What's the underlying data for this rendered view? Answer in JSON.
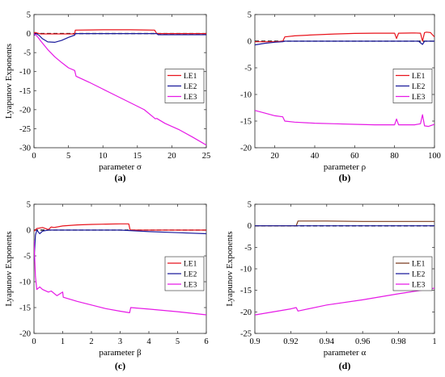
{
  "chart_data": [
    {
      "type": "line",
      "panel_label": "(a)",
      "xlabel": "parameter σ",
      "ylabel": "Lyapunov Exponents",
      "xlim": [
        0,
        25
      ],
      "ylim": [
        -30,
        5
      ],
      "xticks": [
        0,
        5,
        10,
        15,
        20,
        25
      ],
      "yticks": [
        5,
        0,
        -5,
        -10,
        -15,
        -20,
        -25,
        -30
      ],
      "xtick_labels": [
        "0",
        "5",
        "10",
        "15",
        "20",
        "25"
      ],
      "ytick_labels": [
        "5",
        "0",
        "-5",
        "-10",
        "-15",
        "-20",
        "-25",
        "-30"
      ],
      "legend_position": "right-middle",
      "zero_line": true,
      "grid": false,
      "series": [
        {
          "name": "LE1",
          "color": "#e8131c",
          "x": [
            0,
            0.2,
            0.5,
            1,
            2,
            3,
            4,
            5,
            5.9,
            6.0,
            8,
            10,
            12,
            14,
            16,
            17.5,
            17.8,
            19,
            21,
            23,
            25
          ],
          "y": [
            0.2,
            0.3,
            0.1,
            -0.1,
            -0.1,
            -0.1,
            -0.1,
            -0.1,
            -0.1,
            0.9,
            0.95,
            1.0,
            1.0,
            1.0,
            0.95,
            0.9,
            0.0,
            0.0,
            0.0,
            0.0,
            0.0
          ]
        },
        {
          "name": "LE2",
          "color": "#1a1a9c",
          "x": [
            0,
            0.3,
            0.7,
            1.2,
            2,
            3,
            4,
            5,
            5.9,
            6.0,
            10,
            15,
            17.8,
            18,
            20,
            22,
            25
          ],
          "y": [
            -0.5,
            0,
            -0.4,
            -1.3,
            -2.2,
            -2.3,
            -1.8,
            -1.0,
            -0.4,
            0,
            0,
            0,
            0,
            -0.3,
            -0.3,
            -0.3,
            -0.3
          ]
        },
        {
          "name": "LE3",
          "color": "#e619e6",
          "x": [
            0,
            0.5,
            1,
            2,
            3,
            4,
            5,
            5.9,
            6.1,
            8,
            10,
            12,
            14,
            16,
            17.6,
            17.8,
            19,
            21,
            23,
            25
          ],
          "y": [
            0,
            -0.8,
            -2,
            -4.2,
            -6.1,
            -7.6,
            -9.0,
            -9.7,
            -11.2,
            -12.8,
            -14.6,
            -16.4,
            -18.2,
            -20.0,
            -22.4,
            -22.3,
            -23.6,
            -25.2,
            -27.2,
            -29.3
          ]
        }
      ]
    },
    {
      "type": "line",
      "panel_label": "(b)",
      "xlabel": "parameter ρ",
      "ylabel": "",
      "xlim": [
        10,
        100
      ],
      "ylim": [
        -20,
        5
      ],
      "xticks": [
        20,
        40,
        60,
        80,
        100
      ],
      "yticks": [
        5,
        0,
        -5,
        -10,
        -15,
        -20
      ],
      "xtick_labels": [
        "20",
        "40",
        "60",
        "80",
        "100"
      ],
      "ytick_labels": [
        "5",
        "0",
        "-5",
        "-10",
        "-15",
        "-20"
      ],
      "legend_position": "right-middle",
      "zero_line": true,
      "grid": false,
      "series": [
        {
          "name": "LE1",
          "color": "#e8131c",
          "x": [
            10,
            15,
            20,
            24,
            25,
            30,
            40,
            50,
            60,
            70,
            80,
            81,
            82,
            90,
            93,
            94,
            95,
            96,
            98,
            100
          ],
          "y": [
            -0.1,
            -0.1,
            -0.1,
            0,
            0.8,
            1.0,
            1.2,
            1.35,
            1.45,
            1.5,
            1.5,
            0.5,
            1.5,
            1.55,
            1.5,
            0.0,
            1.6,
            1.7,
            1.6,
            0.8
          ]
        },
        {
          "name": "LE2",
          "color": "#1a1a9c",
          "x": [
            10,
            15,
            20,
            24,
            25,
            50,
            80,
            92,
            93,
            94,
            95,
            100
          ],
          "y": [
            -0.7,
            -0.4,
            -0.2,
            -0.1,
            0,
            0,
            0,
            0,
            -0.3,
            -0.6,
            0,
            0
          ]
        },
        {
          "name": "LE3",
          "color": "#e619e6",
          "x": [
            10,
            15,
            20,
            24,
            25,
            30,
            40,
            50,
            60,
            70,
            80,
            81,
            82,
            90,
            93,
            94,
            95,
            97,
            100
          ],
          "y": [
            -13.0,
            -13.5,
            -14.0,
            -14.2,
            -15.0,
            -15.2,
            -15.4,
            -15.5,
            -15.6,
            -15.7,
            -15.7,
            -14.6,
            -15.7,
            -15.7,
            -15.5,
            -13.8,
            -15.9,
            -16.0,
            -15.6
          ]
        }
      ]
    },
    {
      "type": "line",
      "panel_label": "(c)",
      "xlabel": "parameter β",
      "ylabel": "Lyapunov Exponents",
      "xlim": [
        0,
        6
      ],
      "ylim": [
        -20,
        5
      ],
      "xticks": [
        0,
        1,
        2,
        3,
        4,
        5,
        6
      ],
      "yticks": [
        5,
        0,
        -5,
        -10,
        -15,
        -20
      ],
      "xtick_labels": [
        "0",
        "1",
        "2",
        "3",
        "4",
        "5",
        "6"
      ],
      "ytick_labels": [
        "5",
        "0",
        "-5",
        "-10",
        "-15",
        "-20"
      ],
      "legend_position": "right-middle",
      "zero_line": true,
      "grid": false,
      "series": [
        {
          "name": "LE1",
          "color": "#e8131c",
          "x": [
            0,
            0.1,
            0.3,
            0.5,
            0.6,
            0.7,
            1.0,
            1.5,
            2,
            2.5,
            3,
            3.3,
            3.35,
            4,
            5,
            6
          ],
          "y": [
            -0.2,
            0.3,
            0.5,
            0.1,
            0.6,
            0.5,
            0.8,
            1.0,
            1.1,
            1.15,
            1.2,
            1.2,
            0,
            0,
            0,
            0
          ]
        },
        {
          "name": "LE2",
          "color": "#1a1a9c",
          "x": [
            0,
            0.05,
            0.1,
            0.2,
            0.3,
            0.5,
            1,
            2,
            3,
            3.35,
            4,
            5,
            6
          ],
          "y": [
            -6,
            -1,
            0,
            -0.7,
            -0.2,
            0,
            0,
            0,
            0,
            -0.1,
            -0.3,
            -0.5,
            -0.7
          ]
        },
        {
          "name": "LE3",
          "color": "#e619e6",
          "x": [
            0,
            0.05,
            0.1,
            0.2,
            0.3,
            0.5,
            0.6,
            0.8,
            1.0,
            1.02,
            1.5,
            2,
            2.5,
            3,
            3.33,
            3.37,
            4,
            5,
            6
          ],
          "y": [
            -2,
            -9,
            -11.5,
            -11,
            -11.5,
            -12,
            -11.8,
            -12.7,
            -12.0,
            -13.0,
            -13.8,
            -14.5,
            -15.2,
            -15.7,
            -16.0,
            -15.0,
            -15.3,
            -15.8,
            -16.4
          ]
        }
      ]
    },
    {
      "type": "line",
      "panel_label": "(d)",
      "xlabel": "parameter α",
      "ylabel": "Lyapunov Exponents",
      "xlim": [
        0.9,
        1.0
      ],
      "ylim": [
        -25,
        5
      ],
      "xticks": [
        0.9,
        0.92,
        0.94,
        0.96,
        0.98,
        1.0
      ],
      "yticks": [
        5,
        0,
        -5,
        -10,
        -15,
        -20,
        -25
      ],
      "xtick_labels": [
        "0.9",
        "0.92",
        "0.94",
        "0.96",
        "0.98",
        "1"
      ],
      "ytick_labels": [
        "5",
        "0",
        "-5",
        "-10",
        "-15",
        "-20",
        "-25"
      ],
      "legend_position": "right-middle",
      "zero_line": true,
      "grid": false,
      "series": [
        {
          "name": "LE1",
          "color": "#7a3b1e",
          "x": [
            0.9,
            0.92,
            0.923,
            0.924,
            0.94,
            0.96,
            0.98,
            1.0
          ],
          "y": [
            0,
            0,
            0,
            1.1,
            1.1,
            1.0,
            1.0,
            1.0
          ]
        },
        {
          "name": "LE2",
          "color": "#1a1a9c",
          "x": [
            0.9,
            0.95,
            1.0
          ],
          "y": [
            0,
            0,
            0
          ]
        },
        {
          "name": "LE3",
          "color": "#e619e6",
          "x": [
            0.9,
            0.92,
            0.923,
            0.924,
            0.94,
            0.96,
            0.98,
            1.0
          ],
          "y": [
            -20.7,
            -19.3,
            -19.0,
            -19.8,
            -18.4,
            -17.2,
            -15.8,
            -14.5
          ]
        }
      ]
    }
  ]
}
